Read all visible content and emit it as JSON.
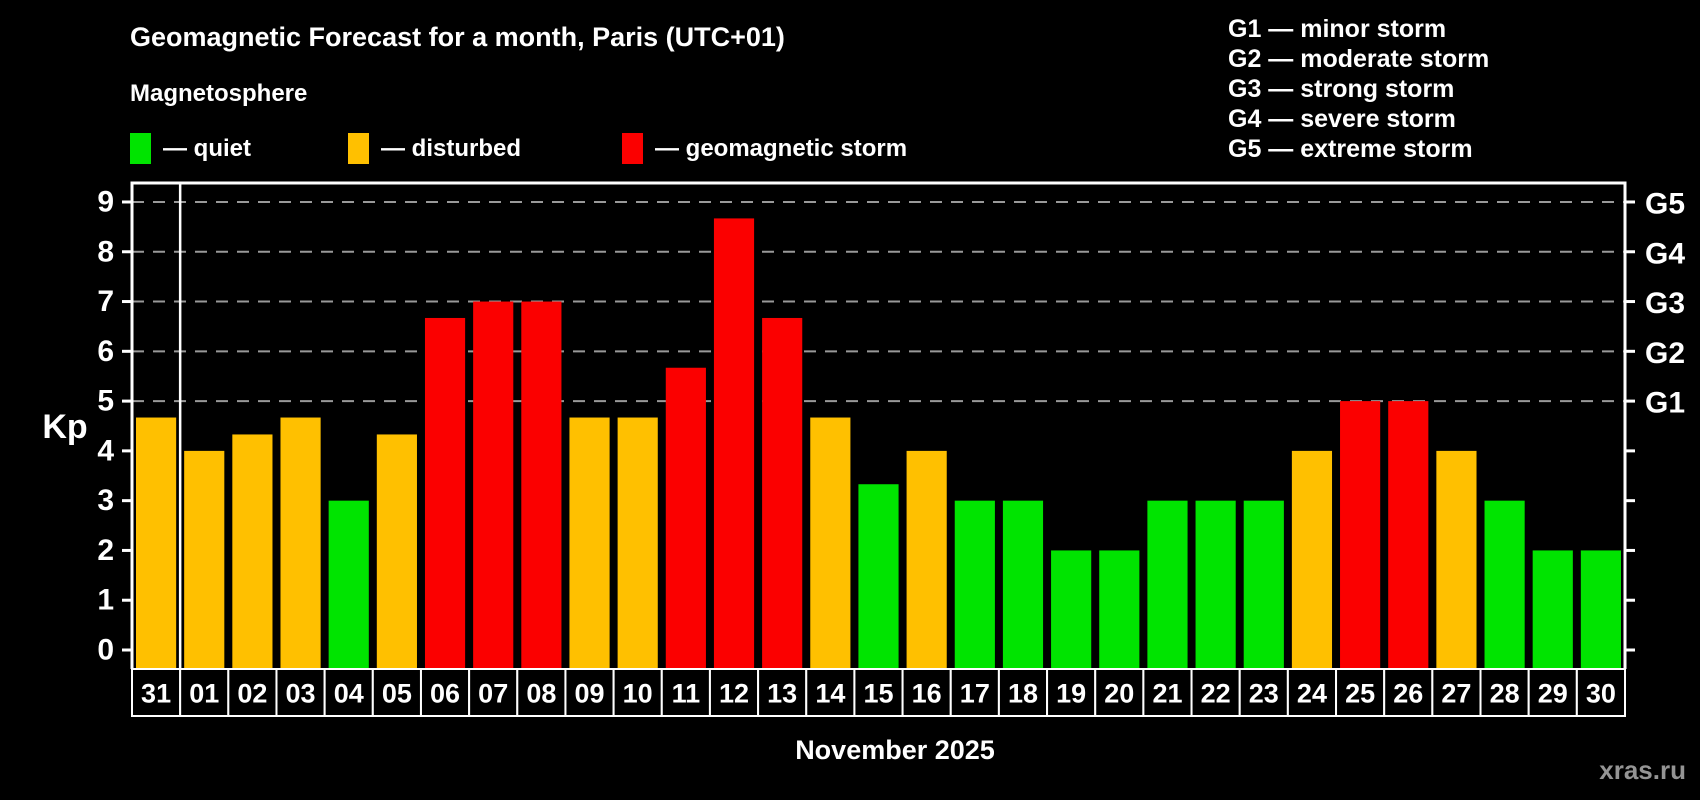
{
  "title": "Geomagnetic Forecast for a month, Paris (UTC+01)",
  "subtitle": "Magnetosphere",
  "legend": {
    "quiet": "— quiet",
    "disturbed": "— disturbed",
    "storm": "— geomagnetic storm"
  },
  "g_legend": [
    "G1 — minor storm",
    "G2 — moderate storm",
    "G3 — strong storm",
    "G4 — severe storm",
    "G5 — extreme storm"
  ],
  "colors": {
    "quiet": "#00e400",
    "disturbed": "#ffc000",
    "storm": "#fb0000",
    "background": "#000000",
    "grid": "#999999",
    "axis": "#ffffff",
    "watermark": "#949494"
  },
  "y_axis": {
    "label": "Kp",
    "ticks": [
      0,
      1,
      2,
      3,
      4,
      5,
      6,
      7,
      8,
      9
    ]
  },
  "right_axis": {
    "labels": [
      "G1",
      "G2",
      "G3",
      "G4",
      "G5"
    ],
    "levels": [
      5,
      6,
      7,
      8,
      9
    ]
  },
  "x_axis": {
    "month_label": "November 2025"
  },
  "watermark": "xras.ru",
  "chart_data": {
    "type": "bar",
    "title": "Geomagnetic Forecast for a month, Paris (UTC+01)",
    "xlabel": "November 2025",
    "ylabel": "Kp",
    "ylim": [
      0,
      9
    ],
    "grid": true,
    "gridlines": [
      5,
      6,
      7,
      8,
      9
    ],
    "month_separator_after_index": 0,
    "categories": [
      "31",
      "01",
      "02",
      "03",
      "04",
      "05",
      "06",
      "07",
      "08",
      "09",
      "10",
      "11",
      "12",
      "13",
      "14",
      "15",
      "16",
      "17",
      "18",
      "19",
      "20",
      "21",
      "22",
      "23",
      "24",
      "25",
      "26",
      "27",
      "28",
      "29",
      "30"
    ],
    "values": [
      4.67,
      4,
      4.33,
      4.67,
      3,
      4.33,
      6.67,
      7,
      7,
      4.67,
      4.67,
      5.67,
      8.67,
      6.67,
      4.67,
      3.33,
      4,
      3,
      3,
      2,
      2,
      3,
      3,
      3,
      4,
      5,
      5,
      4,
      3,
      2,
      2
    ],
    "statuses": [
      "disturbed",
      "disturbed",
      "disturbed",
      "disturbed",
      "quiet",
      "disturbed",
      "storm",
      "storm",
      "storm",
      "disturbed",
      "disturbed",
      "storm",
      "storm",
      "storm",
      "disturbed",
      "quiet",
      "disturbed",
      "quiet",
      "quiet",
      "quiet",
      "quiet",
      "quiet",
      "quiet",
      "quiet",
      "disturbed",
      "storm",
      "storm",
      "disturbed",
      "quiet",
      "quiet",
      "quiet"
    ]
  }
}
